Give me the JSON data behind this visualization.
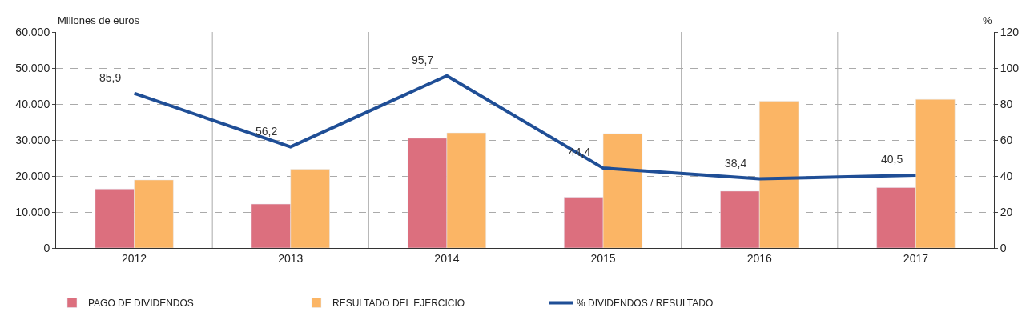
{
  "chart_data": {
    "type": "bar",
    "categories": [
      "2012",
      "2013",
      "2014",
      "2015",
      "2016",
      "2017"
    ],
    "ylabel": "Millones de euros",
    "y2label": "%",
    "series": [
      {
        "name": "PAGO DE DIVIDENDOS",
        "color": "#dc6f7e",
        "values": [
          16400,
          12200,
          30500,
          14100,
          15800,
          16800
        ]
      },
      {
        "name": "RESULTADO DEL EJERCICIO",
        "color": "#fbb565",
        "values": [
          18900,
          21900,
          32000,
          31800,
          40800,
          41300
        ]
      },
      {
        "name": "% DIVIDENDOS / RESULTADO",
        "type": "line",
        "axis": "y2",
        "color": "#1f4e96",
        "values": [
          85.9,
          56.2,
          95.7,
          44.4,
          38.4,
          40.5
        ],
        "value_labels": [
          "85,9",
          "56,2",
          "95,7",
          "44,4",
          "38,4",
          "40,5"
        ]
      }
    ],
    "ylim": [
      0,
      60000
    ],
    "yticks": [
      {
        "value": 0,
        "label": "0"
      },
      {
        "value": 10000,
        "label": "10.000"
      },
      {
        "value": 20000,
        "label": "20.000"
      },
      {
        "value": 30000,
        "label": "30.000"
      },
      {
        "value": 40000,
        "label": "40.000"
      },
      {
        "value": 50000,
        "label": "50.000"
      },
      {
        "value": 60000,
        "label": "60.000"
      }
    ],
    "y2lim": [
      0,
      120
    ],
    "y2ticks": [
      0,
      20,
      40,
      60,
      80,
      100,
      120
    ],
    "grid": true,
    "legend": "bottom",
    "marker": "none",
    "line_style": "solid"
  }
}
